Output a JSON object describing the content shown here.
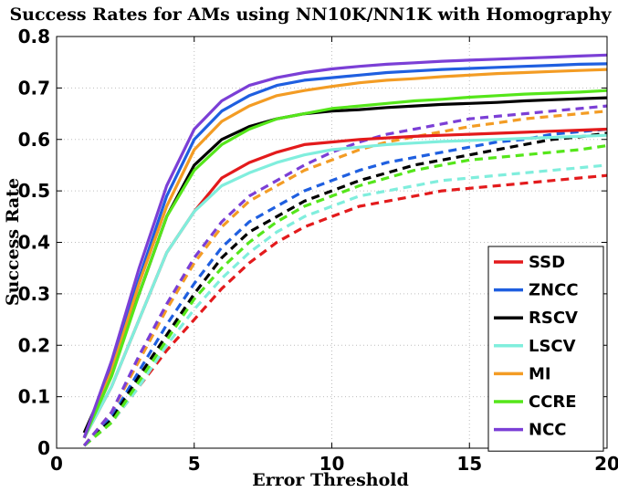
{
  "chart_data": {
    "type": "line",
    "title": "Success Rates for AMs using NN10K/NN1K with Homography",
    "xlabel": "Error Threshold",
    "ylabel": "Success Rate",
    "xlim": [
      0,
      20
    ],
    "ylim": [
      0,
      0.8
    ],
    "xticks": [
      0,
      5,
      10,
      15,
      20
    ],
    "yticks": [
      0,
      0.1,
      0.2,
      0.3,
      0.4,
      0.5,
      0.6,
      0.7,
      0.8
    ],
    "grid": true,
    "legend_position": "lower-right",
    "line_styles": {
      "solid": "NN10K",
      "dashed": "NN1K"
    },
    "x": [
      1,
      2,
      3,
      4,
      5,
      6,
      7,
      8,
      9,
      10,
      11,
      12,
      13,
      14,
      15,
      16,
      17,
      18,
      19,
      20
    ],
    "series": [
      {
        "name": "SSD",
        "color": "#e31a1c",
        "style": "solid",
        "values": [
          0.02,
          0.12,
          0.25,
          0.38,
          0.46,
          0.525,
          0.555,
          0.575,
          0.59,
          0.595,
          0.6,
          0.603,
          0.606,
          0.608,
          0.61,
          0.612,
          0.614,
          0.616,
          0.618,
          0.62
        ]
      },
      {
        "name": "ZNCC",
        "color": "#1f5fe0",
        "style": "solid",
        "values": [
          0.02,
          0.16,
          0.33,
          0.49,
          0.6,
          0.655,
          0.685,
          0.705,
          0.715,
          0.72,
          0.725,
          0.73,
          0.733,
          0.736,
          0.738,
          0.74,
          0.742,
          0.744,
          0.746,
          0.747
        ]
      },
      {
        "name": "RSCV",
        "color": "#000000",
        "style": "solid",
        "values": [
          0.03,
          0.15,
          0.3,
          0.45,
          0.55,
          0.6,
          0.625,
          0.64,
          0.65,
          0.655,
          0.658,
          0.662,
          0.665,
          0.668,
          0.67,
          0.672,
          0.675,
          0.677,
          0.679,
          0.681
        ]
      },
      {
        "name": "LSCV",
        "color": "#80eedd",
        "style": "solid",
        "values": [
          0.02,
          0.12,
          0.25,
          0.38,
          0.46,
          0.51,
          0.535,
          0.555,
          0.57,
          0.58,
          0.585,
          0.59,
          0.593,
          0.596,
          0.598,
          0.6,
          0.602,
          0.604,
          0.606,
          0.608
        ]
      },
      {
        "name": "MI",
        "color": "#f39c24",
        "style": "solid",
        "values": [
          0.02,
          0.15,
          0.32,
          0.47,
          0.58,
          0.635,
          0.665,
          0.685,
          0.695,
          0.703,
          0.71,
          0.715,
          0.718,
          0.722,
          0.725,
          0.728,
          0.73,
          0.732,
          0.734,
          0.736
        ]
      },
      {
        "name": "CCRE",
        "color": "#55e61a",
        "style": "solid",
        "values": [
          0.02,
          0.14,
          0.3,
          0.45,
          0.54,
          0.59,
          0.62,
          0.64,
          0.65,
          0.66,
          0.665,
          0.67,
          0.675,
          0.678,
          0.682,
          0.685,
          0.688,
          0.69,
          0.692,
          0.695
        ]
      },
      {
        "name": "NCC",
        "color": "#7b3fd6",
        "style": "solid",
        "values": [
          0.02,
          0.17,
          0.35,
          0.51,
          0.62,
          0.675,
          0.705,
          0.72,
          0.73,
          0.737,
          0.742,
          0.746,
          0.749,
          0.752,
          0.754,
          0.756,
          0.758,
          0.76,
          0.762,
          0.764
        ]
      },
      {
        "color": "#e31a1c",
        "style": "dashed",
        "values": [
          0.005,
          0.05,
          0.12,
          0.19,
          0.25,
          0.31,
          0.36,
          0.4,
          0.43,
          0.45,
          0.47,
          0.48,
          0.49,
          0.5,
          0.505,
          0.51,
          0.515,
          0.52,
          0.525,
          0.53
        ]
      },
      {
        "color": "#1f5fe0",
        "style": "dashed",
        "values": [
          0.005,
          0.06,
          0.15,
          0.24,
          0.32,
          0.39,
          0.44,
          0.47,
          0.5,
          0.52,
          0.54,
          0.555,
          0.565,
          0.575,
          0.585,
          0.595,
          0.6,
          0.61,
          0.615,
          0.62
        ]
      },
      {
        "color": "#000000",
        "style": "dashed",
        "values": [
          0.005,
          0.055,
          0.14,
          0.22,
          0.3,
          0.37,
          0.42,
          0.45,
          0.48,
          0.5,
          0.52,
          0.535,
          0.55,
          0.56,
          0.57,
          0.58,
          0.59,
          0.6,
          0.605,
          0.612
        ]
      },
      {
        "color": "#80eedd",
        "style": "dashed",
        "values": [
          0.005,
          0.05,
          0.12,
          0.2,
          0.27,
          0.33,
          0.38,
          0.42,
          0.45,
          0.47,
          0.49,
          0.5,
          0.51,
          0.52,
          0.525,
          0.53,
          0.535,
          0.54,
          0.545,
          0.55
        ]
      },
      {
        "color": "#f39c24",
        "style": "dashed",
        "values": [
          0.005,
          0.07,
          0.17,
          0.27,
          0.36,
          0.43,
          0.48,
          0.51,
          0.54,
          0.56,
          0.58,
          0.595,
          0.605,
          0.615,
          0.625,
          0.632,
          0.64,
          0.645,
          0.65,
          0.655
        ]
      },
      {
        "color": "#55e61a",
        "style": "dashed",
        "values": [
          0.005,
          0.05,
          0.13,
          0.21,
          0.29,
          0.35,
          0.4,
          0.44,
          0.47,
          0.49,
          0.51,
          0.525,
          0.54,
          0.55,
          0.56,
          0.565,
          0.57,
          0.575,
          0.58,
          0.588
        ]
      },
      {
        "color": "#7b3fd6",
        "style": "dashed",
        "values": [
          0.005,
          0.07,
          0.18,
          0.28,
          0.37,
          0.44,
          0.49,
          0.52,
          0.55,
          0.575,
          0.595,
          0.61,
          0.62,
          0.63,
          0.64,
          0.645,
          0.65,
          0.655,
          0.66,
          0.665
        ]
      }
    ]
  }
}
